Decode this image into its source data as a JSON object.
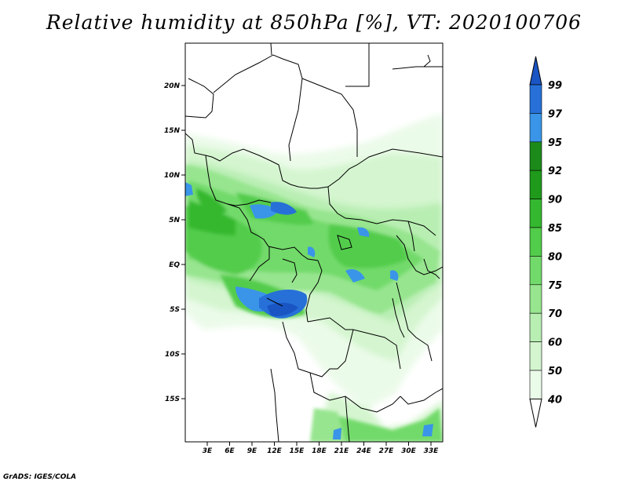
{
  "title": "Relative humidity at 850hPa [%], VT: 2020100706",
  "credit": "GrADS: IGES/COLA",
  "map": {
    "lon_ticks": [
      "3E",
      "6E",
      "9E",
      "12E",
      "15E",
      "18E",
      "21E",
      "24E",
      "27E",
      "30E",
      "33E"
    ],
    "lat_ticks": [
      "20N",
      "15N",
      "10N",
      "5N",
      "EQ",
      "5S",
      "10S",
      "15S"
    ]
  },
  "colorbar": {
    "levels": [
      "40",
      "50",
      "60",
      "70",
      "75",
      "80",
      "85",
      "90",
      "92",
      "95",
      "97",
      "99"
    ],
    "colors": [
      "#ffffff",
      "#ebfbe9",
      "#d4f5cf",
      "#b8eeb2",
      "#97e58f",
      "#72da6b",
      "#52cc4b",
      "#34b82f",
      "#1f9a1b",
      "#1c8a1a",
      "#3a95e8",
      "#2670d8",
      "#1a55c4"
    ]
  }
}
